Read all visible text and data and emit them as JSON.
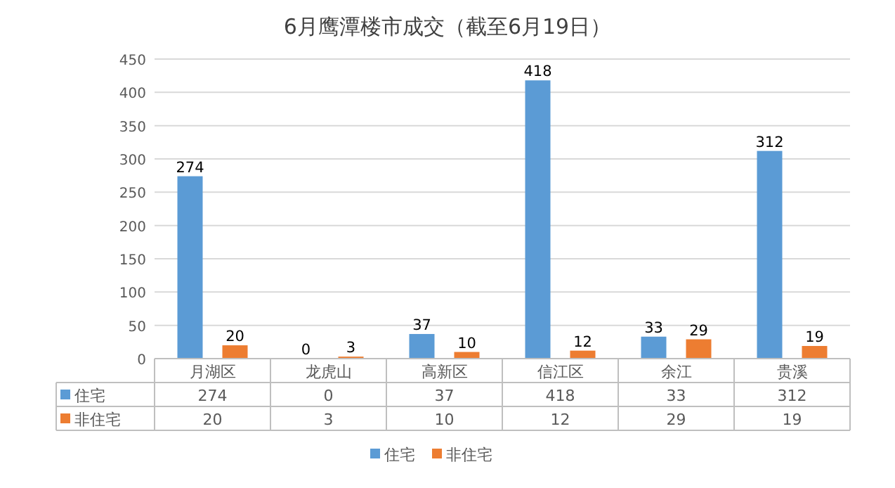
{
  "chart_data": {
    "type": "bar",
    "title": "6月鹰潭楼市成交（截至6月19日）",
    "categories": [
      "月湖区",
      "龙虎山",
      "高新区",
      "信江区",
      "余江",
      "贵溪"
    ],
    "series": [
      {
        "name": "住宅",
        "color": "#5b9bd5",
        "values": [
          274,
          0,
          37,
          418,
          33,
          312
        ]
      },
      {
        "name": "非住宅",
        "color": "#ed7d31",
        "values": [
          20,
          3,
          10,
          12,
          29,
          19
        ]
      }
    ],
    "ylim": [
      0,
      450
    ],
    "yticks": [
      0,
      50,
      100,
      150,
      200,
      250,
      300,
      350,
      400,
      450
    ],
    "grid": "y",
    "legend": "bottom",
    "data_labels": true,
    "annotations": [
      "274",
      "20",
      "0",
      "3",
      "37",
      "10",
      "418",
      "12",
      "33",
      "29",
      "312",
      "19"
    ]
  }
}
